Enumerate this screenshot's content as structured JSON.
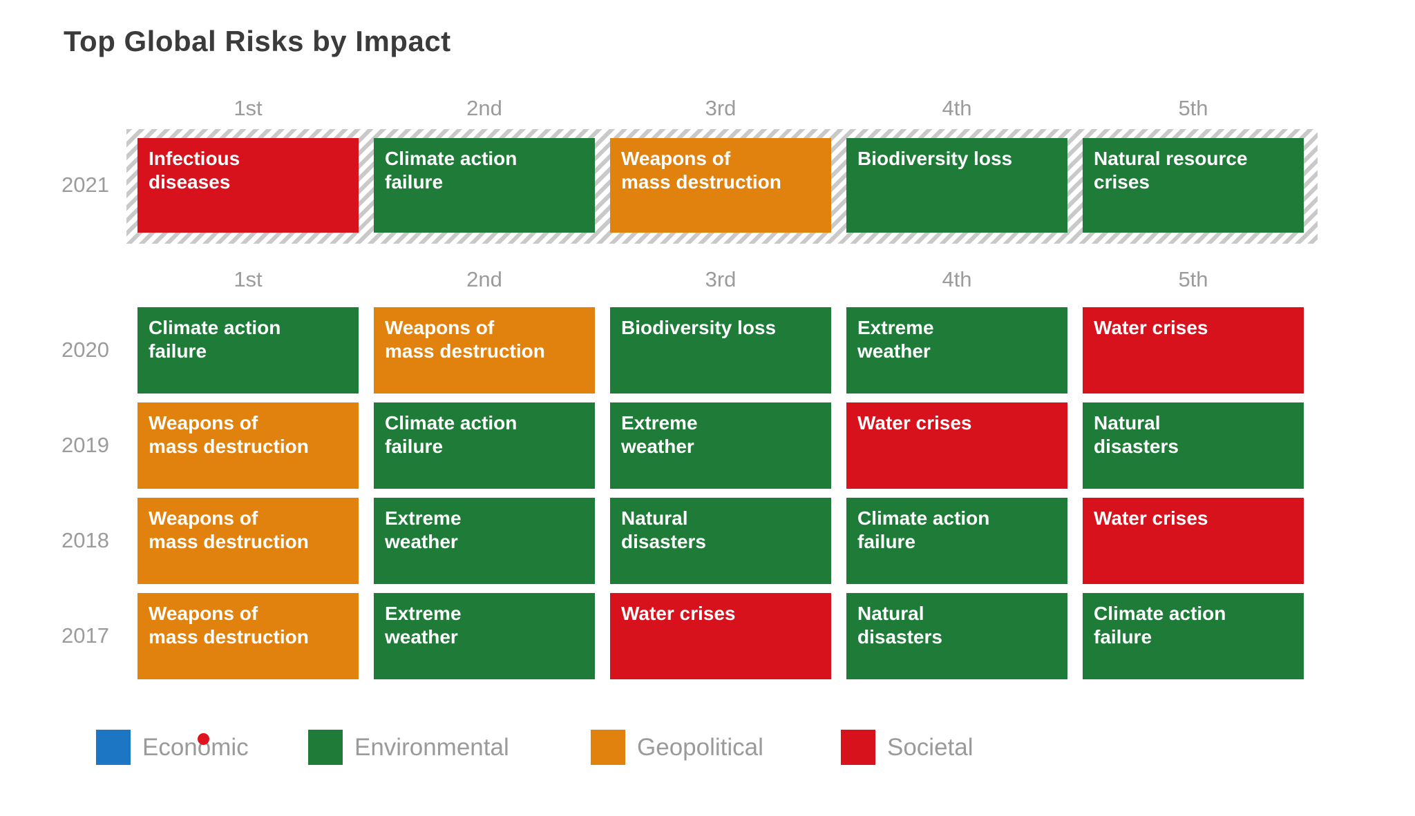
{
  "title": "Top Global Risks by Impact",
  "rank_headers": [
    "1st",
    "2nd",
    "3rd",
    "4th",
    "5th"
  ],
  "category_colors": {
    "Economic": "#1d76c4",
    "Environmental": "#1e7b38",
    "Geopolitical": "#e1820e",
    "Societal": "#d8121c"
  },
  "legend": {
    "items": [
      {
        "label": "Economic",
        "category": "Economic"
      },
      {
        "label": "Environmental",
        "category": "Environmental"
      },
      {
        "label": "Geopolitical",
        "category": "Geopolitical"
      },
      {
        "label": "Societal",
        "category": "Societal"
      }
    ]
  },
  "click_indicator": {
    "color": "#e0121c"
  },
  "chart_data": {
    "type": "table",
    "title": "Top Global Risks by Impact",
    "columns": [
      "1st",
      "2nd",
      "3rd",
      "4th",
      "5th"
    ],
    "legend_position": "bottom",
    "highlight_style": "2021 row framed by gray diagonal hatched band",
    "rows": [
      {
        "year": "2021",
        "highlighted": true,
        "cells": [
          {
            "label": "Infectious\ndiseases",
            "category": "Societal"
          },
          {
            "label": "Climate action\nfailure",
            "category": "Environmental"
          },
          {
            "label": "Weapons of\nmass destruction",
            "category": "Geopolitical"
          },
          {
            "label": "Biodiversity loss",
            "category": "Environmental"
          },
          {
            "label": "Natural resource\ncrises",
            "category": "Environmental"
          }
        ]
      },
      {
        "year": "2020",
        "highlighted": false,
        "cells": [
          {
            "label": "Climate action\nfailure",
            "category": "Environmental"
          },
          {
            "label": "Weapons of\nmass destruction",
            "category": "Geopolitical"
          },
          {
            "label": "Biodiversity loss",
            "category": "Environmental"
          },
          {
            "label": "Extreme\nweather",
            "category": "Environmental"
          },
          {
            "label": "Water crises",
            "category": "Societal"
          }
        ]
      },
      {
        "year": "2019",
        "highlighted": false,
        "cells": [
          {
            "label": "Weapons of\nmass destruction",
            "category": "Geopolitical"
          },
          {
            "label": "Climate action\nfailure",
            "category": "Environmental"
          },
          {
            "label": "Extreme\nweather",
            "category": "Environmental"
          },
          {
            "label": "Water crises",
            "category": "Societal"
          },
          {
            "label": "Natural\ndisasters",
            "category": "Environmental"
          }
        ]
      },
      {
        "year": "2018",
        "highlighted": false,
        "cells": [
          {
            "label": "Weapons of\nmass destruction",
            "category": "Geopolitical"
          },
          {
            "label": "Extreme\nweather",
            "category": "Environmental"
          },
          {
            "label": "Natural\ndisasters",
            "category": "Environmental"
          },
          {
            "label": "Climate action\nfailure",
            "category": "Environmental"
          },
          {
            "label": "Water crises",
            "category": "Societal"
          }
        ]
      },
      {
        "year": "2017",
        "highlighted": false,
        "cells": [
          {
            "label": "Weapons of\nmass destruction",
            "category": "Geopolitical"
          },
          {
            "label": "Extreme\nweather",
            "category": "Environmental"
          },
          {
            "label": "Water crises",
            "category": "Societal"
          },
          {
            "label": "Natural\ndisasters",
            "category": "Environmental"
          },
          {
            "label": "Climate action\nfailure",
            "category": "Environmental"
          }
        ]
      }
    ]
  }
}
